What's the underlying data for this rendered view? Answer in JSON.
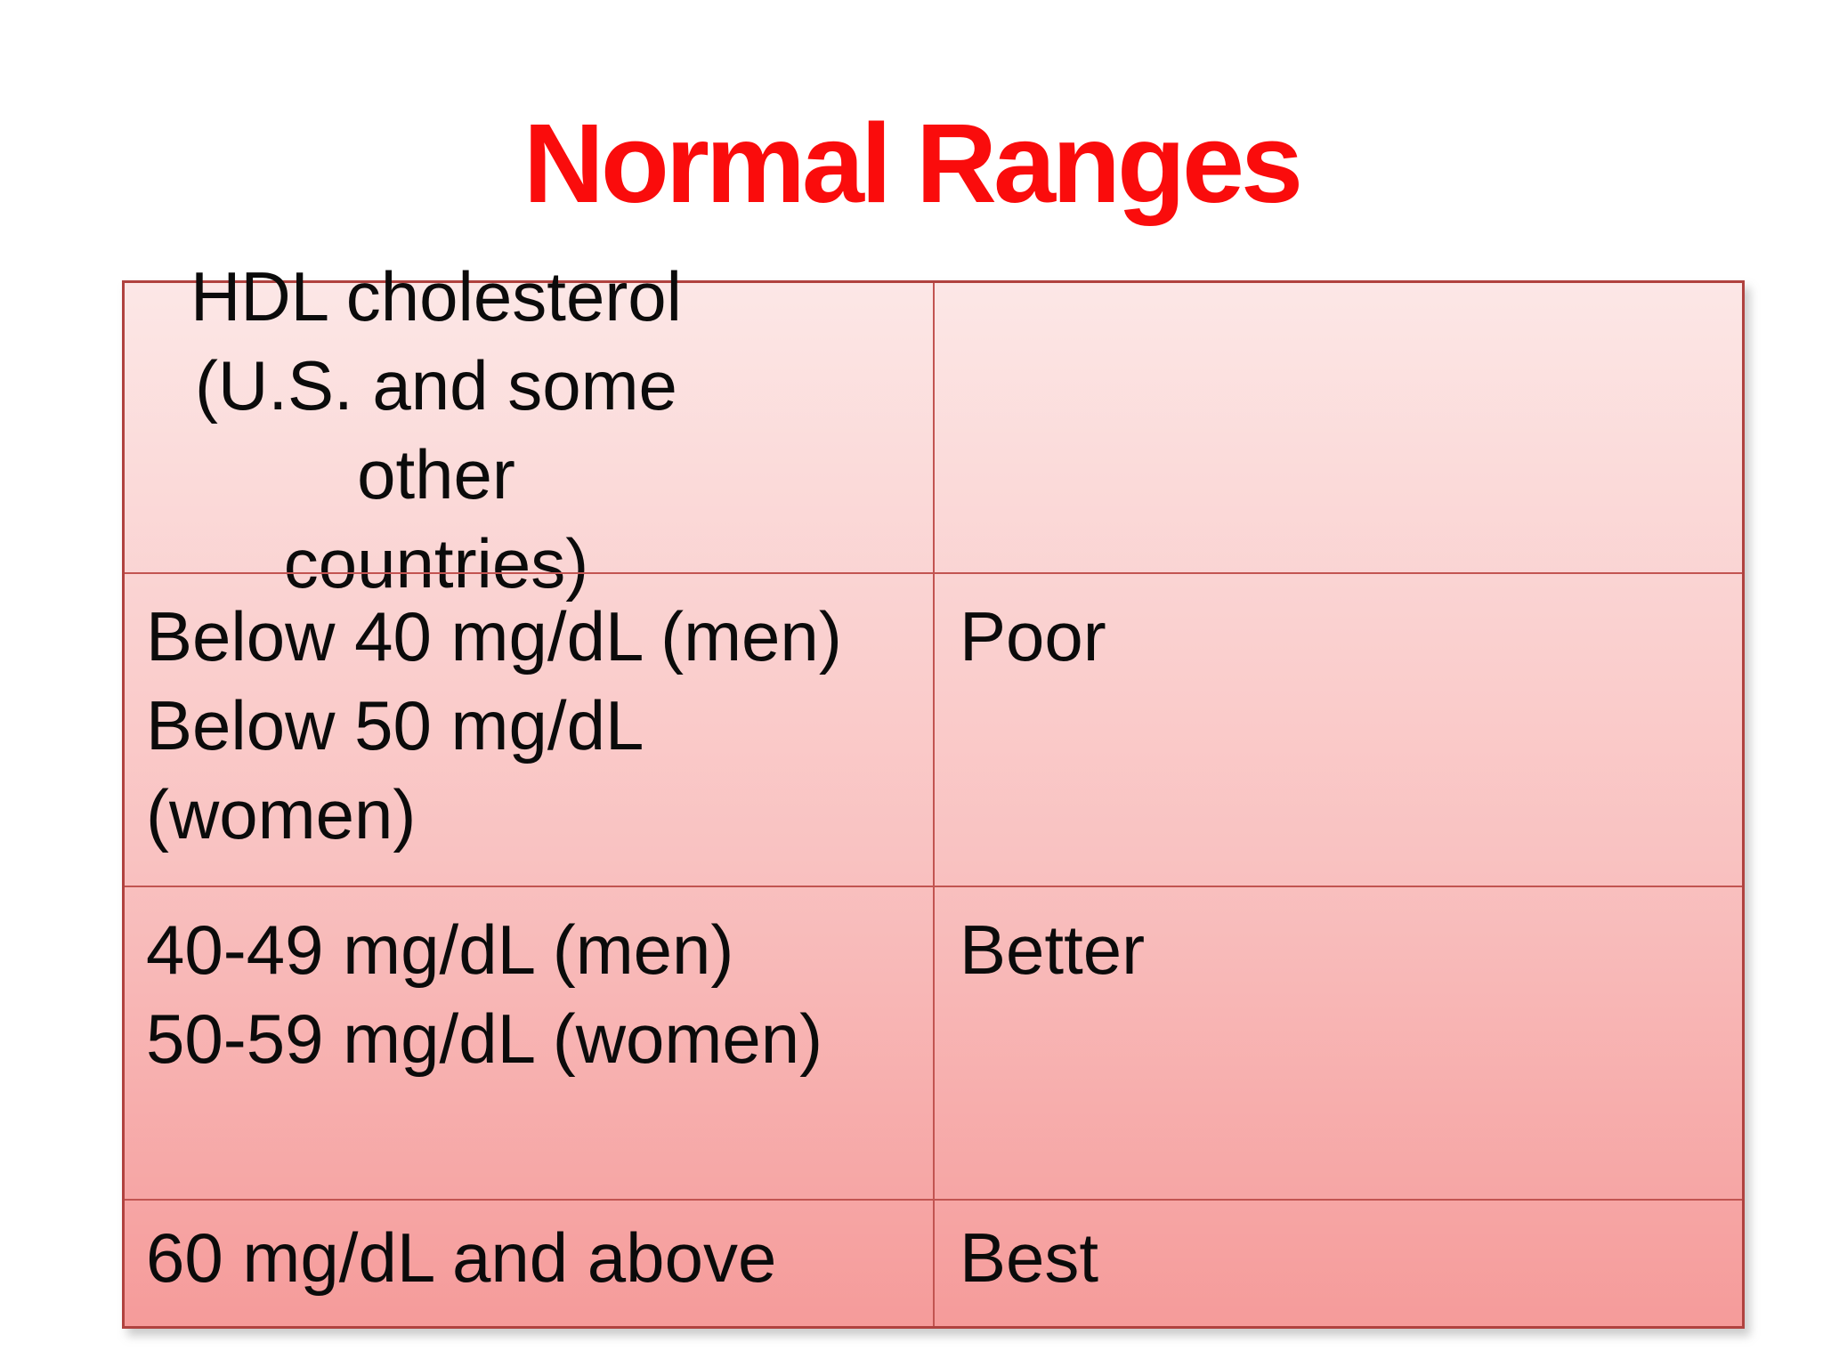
{
  "title": "Normal Ranges",
  "colors": {
    "title_red": "#fa0c0c",
    "table_border_outer": "#b0423f",
    "table_border_inner": "#c25451",
    "table_gradient_top": "#fce7e6",
    "table_gradient_bottom": "#f59b9a",
    "text": "#0b0b0b",
    "background": "#ffffff"
  },
  "table": {
    "header": {
      "range": "HDL cholesterol\n(U.S. and some other\ncountries)",
      "rating": ""
    },
    "rows": [
      {
        "range": "Below 40 mg/dL (men)\nBelow 50 mg/dL (women)",
        "rating": "Poor"
      },
      {
        "range": "40-49 mg/dL (men)\n50-59 mg/dL (women)",
        "rating": "Better"
      },
      {
        "range": "60 mg/dL and above",
        "rating": "Best"
      }
    ]
  }
}
